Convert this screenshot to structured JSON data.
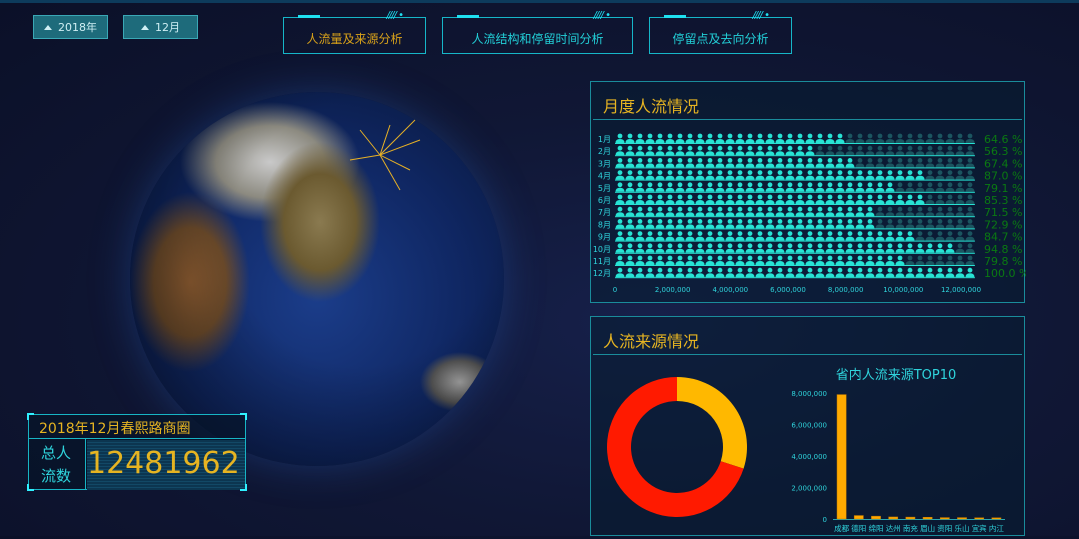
{
  "selectors": {
    "year": "2018年",
    "month": "12月"
  },
  "tabs": [
    {
      "label": "人流量及来源分析",
      "active": true
    },
    {
      "label": "人流结构和停留时间分析",
      "active": false
    },
    {
      "label": "停留点及去向分析",
      "active": false
    }
  ],
  "summary": {
    "title": "2018年12月春熙路商圈",
    "label_line1": "总人",
    "label_line2": "流数",
    "value": "12481962"
  },
  "monthly_panel": {
    "title": "月度人流情况"
  },
  "source_panel": {
    "title": "人流来源情况",
    "bar_title": "省内人流来源TOP10"
  },
  "colors": {
    "accent": "#e6b422",
    "cyan": "#27e3d4",
    "donut_red": "#ff1a00",
    "donut_yellow": "#ffb800",
    "bar": "#ffaa00",
    "percent": "#0a7a12"
  },
  "chart_data": [
    {
      "type": "bar",
      "subtype": "pictorial",
      "orientation": "horizontal",
      "categories": [
        "1月",
        "2月",
        "3月",
        "4月",
        "5月",
        "6月",
        "7月",
        "8月",
        "9月",
        "10月",
        "11月",
        "12月"
      ],
      "values": [
        8063348,
        7027345,
        8412842,
        10859307,
        9873232,
        10647114,
        8924603,
        9099350,
        10572222,
        11832900,
        9960606,
        12481962
      ],
      "percent_labels": [
        "64.6 %",
        "56.3 %",
        "67.4 %",
        "87.0 %",
        "79.1 %",
        "85.3 %",
        "71.5 %",
        "72.9 %",
        "84.7 %",
        "94.8 %",
        "79.8 %",
        "100.0 %"
      ],
      "xticks": [
        "0",
        "2,000,000",
        "4,000,000",
        "6,000,000",
        "8,000,000",
        "10,000,000",
        "12,000,000"
      ],
      "xlim": [
        0,
        12000000
      ],
      "icon": "person-icon"
    },
    {
      "type": "pie",
      "subtype": "donut",
      "values": [
        70,
        30
      ],
      "colors": [
        "#ff1a00",
        "#ffb800"
      ]
    },
    {
      "type": "bar",
      "title": "省内人流来源TOP10",
      "categories": [
        "成都",
        "德阳",
        "绵阳",
        "达州",
        "南充",
        "眉山",
        "资阳",
        "乐山",
        "宜宾",
        "内江"
      ],
      "values": [
        7900000,
        220000,
        180000,
        130000,
        120000,
        110000,
        90000,
        90000,
        80000,
        80000
      ],
      "yticks": [
        "0",
        "2,000,000",
        "4,000,000",
        "6,000,000",
        "8,000,000"
      ],
      "ylim": [
        0,
        8000000
      ]
    }
  ]
}
